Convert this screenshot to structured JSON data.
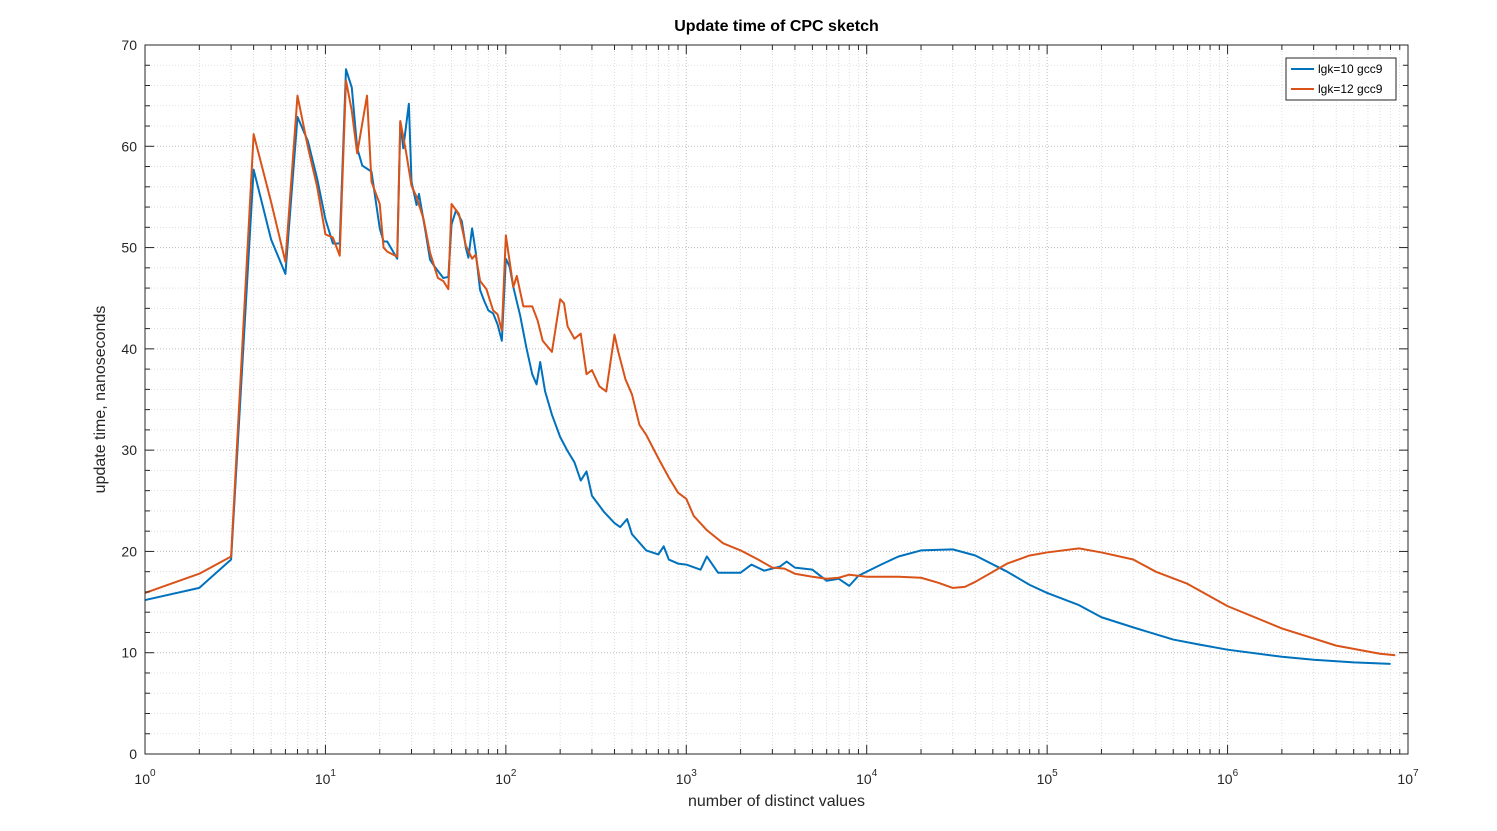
{
  "chart_data": {
    "type": "line",
    "title": "Update time of CPC sketch",
    "xlabel": "number of distinct values",
    "ylabel": "update time, nanoseconds",
    "x_scale": "log",
    "xlim": [
      1,
      10000000
    ],
    "ylim": [
      0,
      70
    ],
    "yticks": [
      0,
      10,
      20,
      30,
      40,
      50,
      60,
      70
    ],
    "xtick_labels": [
      {
        "base": "10",
        "exp": "0"
      },
      {
        "base": "10",
        "exp": "1"
      },
      {
        "base": "10",
        "exp": "2"
      },
      {
        "base": "10",
        "exp": "3"
      },
      {
        "base": "10",
        "exp": "4"
      },
      {
        "base": "10",
        "exp": "5"
      },
      {
        "base": "10",
        "exp": "6"
      },
      {
        "base": "10",
        "exp": "7"
      }
    ],
    "grid": true,
    "minor_grid": true,
    "legend_position": "top-right",
    "series": [
      {
        "name": "lgk=10 gcc9",
        "color": "#0072BD",
        "points": [
          [
            1,
            15.2
          ],
          [
            2,
            16.4
          ],
          [
            3,
            19.2
          ],
          [
            4,
            57.7
          ],
          [
            5,
            50.8
          ],
          [
            6,
            47.4
          ],
          [
            7,
            62.9
          ],
          [
            8,
            60.5
          ],
          [
            9,
            56.8
          ],
          [
            10,
            52.8
          ],
          [
            11,
            50.4
          ],
          [
            12,
            50.4
          ],
          [
            13,
            67.6
          ],
          [
            14,
            65.8
          ],
          [
            15,
            59.8
          ],
          [
            16,
            58.1
          ],
          [
            18,
            57.5
          ],
          [
            20,
            51.9
          ],
          [
            21,
            50.6
          ],
          [
            22,
            50.6
          ],
          [
            25,
            48.9
          ],
          [
            26,
            62.4
          ],
          [
            27,
            59.8
          ],
          [
            29,
            64.2
          ],
          [
            30,
            56.5
          ],
          [
            32,
            54.2
          ],
          [
            33,
            55.3
          ],
          [
            36,
            51.4
          ],
          [
            38,
            48.8
          ],
          [
            40,
            48.2
          ],
          [
            45,
            47.0
          ],
          [
            48,
            47.1
          ],
          [
            50,
            52.3
          ],
          [
            53,
            53.7
          ],
          [
            57,
            52.6
          ],
          [
            60,
            50.0
          ],
          [
            62,
            49.0
          ],
          [
            65,
            51.9
          ],
          [
            68,
            49.6
          ],
          [
            72,
            45.8
          ],
          [
            76,
            44.7
          ],
          [
            80,
            43.8
          ],
          [
            85,
            43.5
          ],
          [
            90,
            42.4
          ],
          [
            95,
            40.8
          ],
          [
            100,
            48.9
          ],
          [
            105,
            48.1
          ],
          [
            110,
            46.1
          ],
          [
            120,
            43.3
          ],
          [
            130,
            40.1
          ],
          [
            140,
            37.5
          ],
          [
            148,
            36.5
          ],
          [
            155,
            38.7
          ],
          [
            165,
            35.8
          ],
          [
            180,
            33.5
          ],
          [
            200,
            31.3
          ],
          [
            220,
            29.9
          ],
          [
            240,
            28.8
          ],
          [
            260,
            27.0
          ],
          [
            280,
            27.9
          ],
          [
            300,
            25.5
          ],
          [
            350,
            23.9
          ],
          [
            400,
            22.8
          ],
          [
            430,
            22.4
          ],
          [
            470,
            23.2
          ],
          [
            500,
            21.7
          ],
          [
            600,
            20.1
          ],
          [
            700,
            19.7
          ],
          [
            750,
            20.5
          ],
          [
            800,
            19.2
          ],
          [
            900,
            18.8
          ],
          [
            1000,
            18.7
          ],
          [
            1200,
            18.2
          ],
          [
            1300,
            19.5
          ],
          [
            1500,
            17.9
          ],
          [
            2000,
            17.9
          ],
          [
            2300,
            18.7
          ],
          [
            2700,
            18.1
          ],
          [
            3300,
            18.5
          ],
          [
            3600,
            19.0
          ],
          [
            4000,
            18.4
          ],
          [
            5000,
            18.2
          ],
          [
            6000,
            17.1
          ],
          [
            7000,
            17.3
          ],
          [
            8000,
            16.6
          ],
          [
            9000,
            17.6
          ],
          [
            12000,
            18.7
          ],
          [
            15000,
            19.5
          ],
          [
            20000,
            20.1
          ],
          [
            30000,
            20.2
          ],
          [
            40000,
            19.6
          ],
          [
            60000,
            18.0
          ],
          [
            80000,
            16.7
          ],
          [
            100000,
            15.9
          ],
          [
            150000,
            14.7
          ],
          [
            200000,
            13.5
          ],
          [
            300000,
            12.5
          ],
          [
            500000,
            11.3
          ],
          [
            700000,
            10.8
          ],
          [
            1000000,
            10.3
          ],
          [
            2000000,
            9.6
          ],
          [
            3000000,
            9.3
          ],
          [
            5000000,
            9.05
          ],
          [
            8000000,
            8.9
          ]
        ]
      },
      {
        "name": "lgk=12 gcc9",
        "color": "#D95319",
        "points": [
          [
            1,
            15.9
          ],
          [
            2,
            17.8
          ],
          [
            3,
            19.5
          ],
          [
            4,
            61.2
          ],
          [
            5,
            54.5
          ],
          [
            6,
            48.6
          ],
          [
            7,
            65.0
          ],
          [
            8,
            59.9
          ],
          [
            9,
            56.0
          ],
          [
            10,
            51.3
          ],
          [
            11,
            51.0
          ],
          [
            12,
            49.2
          ],
          [
            13,
            66.5
          ],
          [
            14,
            63.5
          ],
          [
            15,
            59.3
          ],
          [
            17,
            65.0
          ],
          [
            18,
            56.5
          ],
          [
            20,
            54.3
          ],
          [
            21,
            50.0
          ],
          [
            22,
            49.6
          ],
          [
            25,
            49.1
          ],
          [
            26,
            62.5
          ],
          [
            28,
            59.4
          ],
          [
            30,
            56.1
          ],
          [
            32,
            55.0
          ],
          [
            35,
            52.8
          ],
          [
            38,
            49.5
          ],
          [
            42,
            47.0
          ],
          [
            45,
            46.7
          ],
          [
            48,
            45.9
          ],
          [
            50,
            54.3
          ],
          [
            55,
            53.3
          ],
          [
            60,
            50.2
          ],
          [
            65,
            48.9
          ],
          [
            68,
            49.3
          ],
          [
            72,
            46.7
          ],
          [
            78,
            45.9
          ],
          [
            85,
            43.8
          ],
          [
            90,
            43.4
          ],
          [
            95,
            41.8
          ],
          [
            100,
            51.2
          ],
          [
            110,
            46.1
          ],
          [
            115,
            47.2
          ],
          [
            125,
            44.2
          ],
          [
            140,
            44.2
          ],
          [
            150,
            42.8
          ],
          [
            160,
            40.8
          ],
          [
            180,
            39.7
          ],
          [
            200,
            44.9
          ],
          [
            210,
            44.5
          ],
          [
            220,
            42.2
          ],
          [
            240,
            41.0
          ],
          [
            260,
            41.5
          ],
          [
            280,
            37.5
          ],
          [
            300,
            37.9
          ],
          [
            330,
            36.3
          ],
          [
            360,
            35.8
          ],
          [
            400,
            41.4
          ],
          [
            420,
            39.7
          ],
          [
            460,
            37.0
          ],
          [
            500,
            35.5
          ],
          [
            550,
            32.5
          ],
          [
            600,
            31.5
          ],
          [
            700,
            29.2
          ],
          [
            800,
            27.3
          ],
          [
            900,
            25.8
          ],
          [
            1000,
            25.2
          ],
          [
            1100,
            23.5
          ],
          [
            1300,
            22.1
          ],
          [
            1600,
            20.8
          ],
          [
            2000,
            20.1
          ],
          [
            2500,
            19.2
          ],
          [
            3000,
            18.4
          ],
          [
            3500,
            18.3
          ],
          [
            4000,
            17.8
          ],
          [
            5000,
            17.5
          ],
          [
            6000,
            17.3
          ],
          [
            7000,
            17.4
          ],
          [
            8000,
            17.7
          ],
          [
            10000,
            17.5
          ],
          [
            15000,
            17.5
          ],
          [
            20000,
            17.4
          ],
          [
            25000,
            16.9
          ],
          [
            30000,
            16.4
          ],
          [
            35000,
            16.5
          ],
          [
            40000,
            17.0
          ],
          [
            60000,
            18.8
          ],
          [
            80000,
            19.6
          ],
          [
            100000,
            19.9
          ],
          [
            150000,
            20.3
          ],
          [
            200000,
            19.9
          ],
          [
            300000,
            19.2
          ],
          [
            400000,
            18.0
          ],
          [
            600000,
            16.8
          ],
          [
            1000000,
            14.6
          ],
          [
            2000000,
            12.4
          ],
          [
            4000000,
            10.7
          ],
          [
            7000000,
            9.9
          ],
          [
            8500000,
            9.75
          ]
        ]
      }
    ]
  }
}
